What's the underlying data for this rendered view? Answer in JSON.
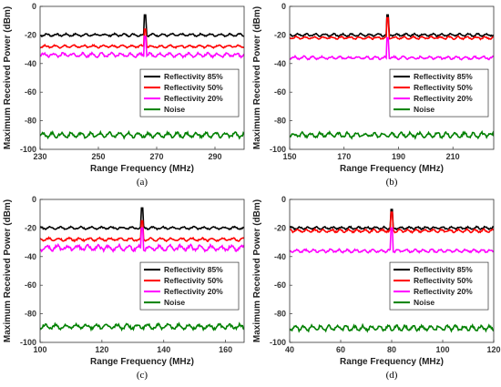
{
  "chart_data": [
    {
      "type": "line",
      "panel_label": "(a)",
      "xlabel": "Range Frequency (MHz)",
      "ylabel": "Maximum Received Power (dBm)",
      "xlim": [
        230,
        300
      ],
      "ylim": [
        -100,
        0
      ],
      "xticks": [
        230,
        250,
        270,
        290
      ],
      "yticks": [
        0,
        -20,
        -40,
        -60,
        -80,
        -100
      ],
      "legend_position": "right",
      "peak_x": 266,
      "series": [
        {
          "name": "Reflectivity 85%",
          "color": "#000000",
          "base": -20,
          "ripple": 1.0,
          "peak": -6
        },
        {
          "name": "Reflectivity 50%",
          "color": "#ff0000",
          "base": -28,
          "ripple": 1.0,
          "peak": -16
        },
        {
          "name": "Reflectivity 20%",
          "color": "#ff00ff",
          "base": -34,
          "ripple": 1.6,
          "peak": -21
        },
        {
          "name": "Noise",
          "color": "#008000",
          "base": -90,
          "ripple": 2.0,
          "peak": null
        }
      ]
    },
    {
      "type": "line",
      "panel_label": "(b)",
      "xlabel": "Range Frequency (MHz)",
      "ylabel": "Maximum Received Power (dBm)",
      "xlim": [
        150,
        225
      ],
      "ylim": [
        -100,
        0
      ],
      "xticks": [
        150,
        170,
        190,
        210
      ],
      "yticks": [
        0,
        -20,
        -40,
        -60,
        -80,
        -100
      ],
      "legend_position": "right",
      "peak_x": 186,
      "series": [
        {
          "name": "Reflectivity 85%",
          "color": "#000000",
          "base": -20,
          "ripple": 1.0,
          "peak": -6
        },
        {
          "name": "Reflectivity 50%",
          "color": "#ff0000",
          "base": -22,
          "ripple": 1.0,
          "peak": -8
        },
        {
          "name": "Reflectivity 20%",
          "color": "#ff00ff",
          "base": -36,
          "ripple": 1.2,
          "peak": -22
        },
        {
          "name": "Noise",
          "color": "#008000",
          "base": -90,
          "ripple": 2.0,
          "peak": null
        }
      ]
    },
    {
      "type": "line",
      "panel_label": "(c)",
      "xlabel": "Range Frequency (MHz)",
      "ylabel": "Maximum Received Power (dBm)",
      "xlim": [
        100,
        166
      ],
      "ylim": [
        -100,
        0
      ],
      "xticks": [
        100,
        120,
        140,
        160
      ],
      "yticks": [
        0,
        -20,
        -40,
        -60,
        -80,
        -100
      ],
      "legend_position": "right",
      "peak_x": 133,
      "series": [
        {
          "name": "Reflectivity 85%",
          "color": "#000000",
          "base": -20,
          "ripple": 1.0,
          "peak": -6
        },
        {
          "name": "Reflectivity 50%",
          "color": "#ff0000",
          "base": -28,
          "ripple": 1.2,
          "peak": -15
        },
        {
          "name": "Reflectivity 20%",
          "color": "#ff00ff",
          "base": -34,
          "ripple": 2.2,
          "peak": -20
        },
        {
          "name": "Noise",
          "color": "#008000",
          "base": -89,
          "ripple": 2.0,
          "peak": null
        }
      ]
    },
    {
      "type": "line",
      "panel_label": "(d)",
      "xlabel": "Range Frequency (MHz)",
      "ylabel": "Maximum Received Power (dBm)",
      "xlim": [
        40,
        120
      ],
      "ylim": [
        -100,
        0
      ],
      "xticks": [
        40,
        60,
        80,
        100,
        120
      ],
      "yticks": [
        0,
        -20,
        -40,
        -60,
        -80,
        -100
      ],
      "legend_position": "right",
      "peak_x": 80,
      "series": [
        {
          "name": "Reflectivity 85%",
          "color": "#000000",
          "base": -20,
          "ripple": 1.0,
          "peak": -7
        },
        {
          "name": "Reflectivity 50%",
          "color": "#ff0000",
          "base": -22,
          "ripple": 1.2,
          "peak": -9
        },
        {
          "name": "Reflectivity 20%",
          "color": "#ff00ff",
          "base": -36,
          "ripple": 1.2,
          "peak": -20
        },
        {
          "name": "Noise",
          "color": "#008000",
          "base": -90,
          "ripple": 2.0,
          "peak": null
        }
      ]
    }
  ]
}
